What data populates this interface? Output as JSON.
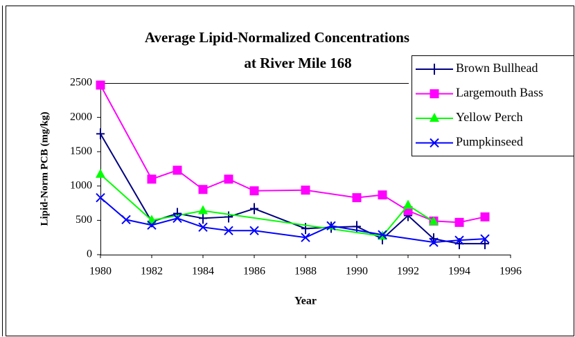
{
  "chart_data": {
    "type": "line",
    "title": [
      "Average Lipid-Normalized Concentrations",
      "at River Mile 168"
    ],
    "x_label": "Year",
    "y_label": "Lipid-Norm PCB  (mg/kg)",
    "xlim": [
      1980,
      1996
    ],
    "xticks": [
      1980,
      1982,
      1984,
      1986,
      1988,
      1990,
      1992,
      1994,
      1996
    ],
    "ylim": [
      0,
      2500
    ],
    "yticks": [
      0,
      500,
      1000,
      1500,
      2000,
      2500
    ],
    "grid": false,
    "legend": "upper right",
    "series": [
      {
        "name": "Brown Bullhead",
        "color": "#000080",
        "marker": "plus",
        "x": [
          1980,
          1982,
          1983,
          1984,
          1985,
          1986,
          1988,
          1989,
          1990,
          1991,
          1992,
          1993,
          1994,
          1995
        ],
        "values": [
          1760,
          480,
          600,
          530,
          550,
          670,
          380,
          400,
          410,
          230,
          570,
          230,
          160,
          160
        ]
      },
      {
        "name": "Largemouth Bass",
        "color": "#ff00ff",
        "marker": "square",
        "x": [
          1980,
          1982,
          1983,
          1984,
          1985,
          1986,
          1988,
          1990,
          1991,
          1992,
          1993,
          1994,
          1995
        ],
        "values": [
          2470,
          1100,
          1230,
          950,
          1100,
          930,
          940,
          830,
          870,
          640,
          490,
          470,
          550
        ]
      },
      {
        "name": "Yellow Perch",
        "color": "#00ff00",
        "marker": "triangle",
        "x": [
          1980,
          1982,
          1984,
          1991,
          1992,
          1993
        ],
        "values": [
          1170,
          500,
          640,
          270,
          720,
          480
        ]
      },
      {
        "name": "Pumpkinseed",
        "color": "#0000ff",
        "marker": "x",
        "x": [
          1980,
          1981,
          1982,
          1983,
          1984,
          1985,
          1986,
          1988,
          1989,
          1991,
          1993,
          1994,
          1995
        ],
        "values": [
          830,
          510,
          430,
          530,
          400,
          350,
          350,
          250,
          420,
          290,
          180,
          210,
          230
        ]
      }
    ]
  }
}
